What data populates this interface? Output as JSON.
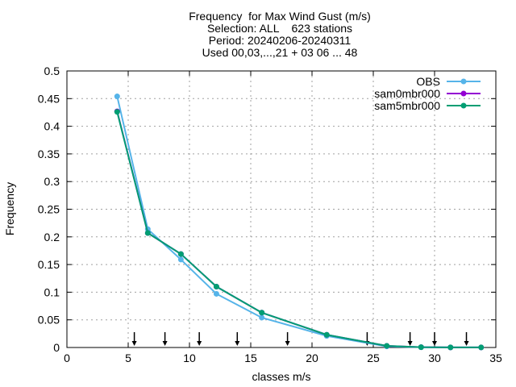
{
  "chart_data": {
    "type": "line",
    "title_lines": [
      "Frequency  for Max Wind Gust (m/s)",
      "Selection: ALL    623 stations",
      "Period: 20240206-20240311",
      "Used 00,03,...,21 + 03 06 ... 48"
    ],
    "xlabel": "classes m/s",
    "ylabel": "Frequency",
    "xlim": [
      0,
      35
    ],
    "ylim": [
      0,
      0.5
    ],
    "xticks": [
      "0",
      "5",
      "10",
      "15",
      "20",
      "25",
      "30",
      "35"
    ],
    "yticks": [
      "0",
      "0.05",
      "0.1",
      "0.15",
      "0.2",
      "0.25",
      "0.3",
      "0.35",
      "0.4",
      "0.45",
      "0.5"
    ],
    "grid": true,
    "legend_position": "top-right",
    "series": [
      {
        "name": "OBS",
        "color": "#56b4e9",
        "x": [
          4.1,
          6.6,
          9.3,
          12.2,
          15.9,
          21.2,
          26.1,
          28.9,
          31.3,
          33.8
        ],
        "y": [
          0.454,
          0.214,
          0.159,
          0.097,
          0.054,
          0.021,
          0.002,
          0.0005,
          0.0002,
          0.0001
        ]
      },
      {
        "name": "sam0mbr000",
        "color": "#9400d3",
        "x": [
          4.1,
          6.6,
          9.3,
          12.2,
          15.9,
          21.2,
          26.1,
          28.9,
          31.3,
          33.8
        ],
        "y": [
          0.427,
          0.207,
          0.169,
          0.11,
          0.063,
          0.023,
          0.003,
          0.0005,
          0.0002,
          0.0001
        ]
      },
      {
        "name": "sam5mbr000",
        "color": "#009e73",
        "x": [
          4.1,
          6.6,
          9.3,
          12.2,
          15.9,
          21.2,
          26.1,
          28.9,
          31.3,
          33.8
        ],
        "y": [
          0.426,
          0.207,
          0.169,
          0.11,
          0.063,
          0.023,
          0.003,
          0.0005,
          0.0002,
          0.0001
        ]
      }
    ],
    "class_boundary_arrows_x": [
      5.5,
      8.0,
      10.8,
      13.9,
      18.0,
      24.5,
      28.0,
      30.0,
      32.6
    ]
  }
}
